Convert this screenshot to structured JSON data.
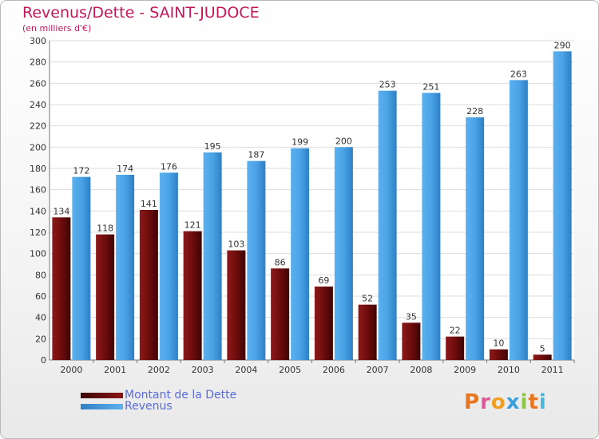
{
  "header": {
    "title": "Revenus/Dette - SAINT-JUDOCE",
    "subtitle": "(en milliers d'€)"
  },
  "colors": {
    "dette": "#6b0a0a",
    "revenus": "#3f96dd"
  },
  "chart_data": {
    "type": "bar",
    "title": "Revenus/Dette - SAINT-JUDOCE",
    "ylabel": "(en milliers d'€)",
    "xlabel": "",
    "ylim": [
      0,
      300
    ],
    "ytick_step": 20,
    "grid": true,
    "categories": [
      "2000",
      "2001",
      "2002",
      "2003",
      "2004",
      "2005",
      "2006",
      "2007",
      "2008",
      "2009",
      "2010",
      "2011"
    ],
    "series": [
      {
        "name": "Montant de la Dette",
        "values": [
          134,
          118,
          141,
          121,
          103,
          86,
          69,
          52,
          35,
          22,
          10,
          5
        ]
      },
      {
        "name": "Revenus",
        "values": [
          172,
          174,
          176,
          195,
          187,
          199,
          200,
          253,
          251,
          228,
          263,
          290
        ]
      }
    ],
    "legend_position": "bottom-left"
  },
  "legend": {
    "dette_label": "Montant de la Dette",
    "revenus_label": "Revenus"
  },
  "logo": {
    "text": "Proxiti"
  }
}
